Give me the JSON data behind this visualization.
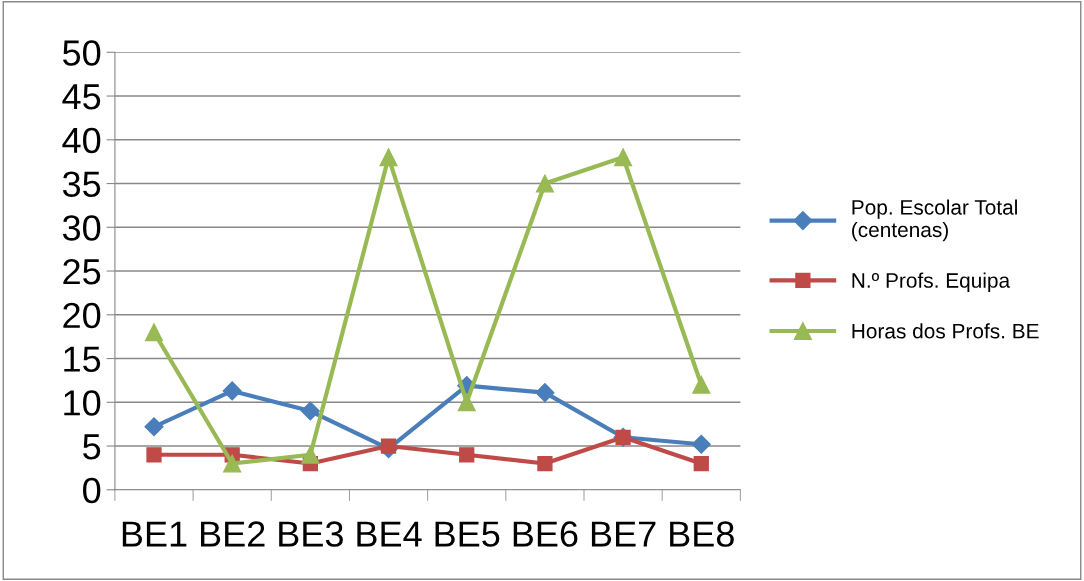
{
  "chart_data": {
    "type": "line",
    "categories": [
      "BE1",
      "BE2",
      "BE3",
      "BE4",
      "BE5",
      "BE6",
      "BE7",
      "BE8"
    ],
    "series": [
      {
        "name": "Pop. Escolar Total\n(centenas)",
        "color": "#4a7ebb",
        "marker": "diamond",
        "values": [
          7.2,
          11.3,
          9.0,
          4.7,
          11.9,
          11.1,
          6.0,
          5.2
        ]
      },
      {
        "name": "N.º Profs. Equipa",
        "color": "#be4b48",
        "marker": "square",
        "values": [
          4,
          4,
          3,
          5,
          4,
          3,
          6,
          3
        ]
      },
      {
        "name": "Horas dos Profs. BE",
        "color": "#98b954",
        "marker": "triangle",
        "values": [
          18,
          3,
          4,
          38,
          10,
          35,
          38,
          12
        ]
      }
    ],
    "ylim": [
      0,
      50
    ],
    "yticks": [
      0,
      5,
      10,
      15,
      20,
      25,
      30,
      35,
      40,
      45,
      50
    ],
    "grid": "y",
    "legend": "right",
    "line_style": "solid"
  }
}
